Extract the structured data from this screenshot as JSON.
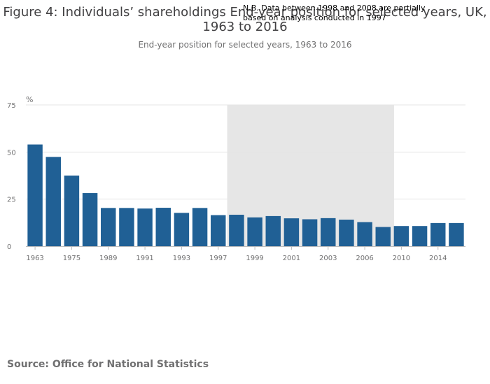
{
  "title": "Figure 4: Individuals’ shareholdings End-year position for selected years, UK, 1963 to 2016",
  "subtitle": "End-year position for selected years, 1963 to 2016",
  "note": "N.B. Data between 1998 and 2008 are partially based on analysis conducted in 1997",
  "source": "Source: Office for National Statistics",
  "colors": {
    "bar": "#206095",
    "shade": "#e6e6e6",
    "grid": "#e5e5e5",
    "axis_text": "#707071"
  },
  "chart_data": {
    "type": "bar",
    "categories": [
      "1963",
      "1969",
      "1975",
      "1981",
      "1989",
      "1990",
      "1991",
      "1992",
      "1993",
      "1994",
      "1997",
      "1998",
      "1999",
      "2000",
      "2001",
      "2002",
      "2003",
      "2004",
      "2006",
      "2008",
      "2010",
      "2012",
      "2014",
      "2016"
    ],
    "x_tick_labels": [
      "1963",
      "1975",
      "1989",
      "1991",
      "1993",
      "1997",
      "1999",
      "2001",
      "2003",
      "2006",
      "2010",
      "2014"
    ],
    "series": [
      {
        "values": [
          54,
          47.4,
          37.5,
          28.2,
          20.3,
          20.3,
          20,
          20.4,
          17.7,
          20.3,
          16.5,
          16.7,
          15.3,
          16.0,
          14.8,
          14.3,
          14.9,
          14.1,
          12.8,
          10.2,
          10.7,
          10.7,
          12.3,
          12.3
        ]
      }
    ],
    "ylabel": "%",
    "ylim": [
      0,
      75
    ],
    "yticks": [
      "0",
      "25",
      "50",
      "75"
    ],
    "shaded_period": {
      "from": "1998",
      "to": "2008"
    },
    "grid": true,
    "legend": "none"
  }
}
